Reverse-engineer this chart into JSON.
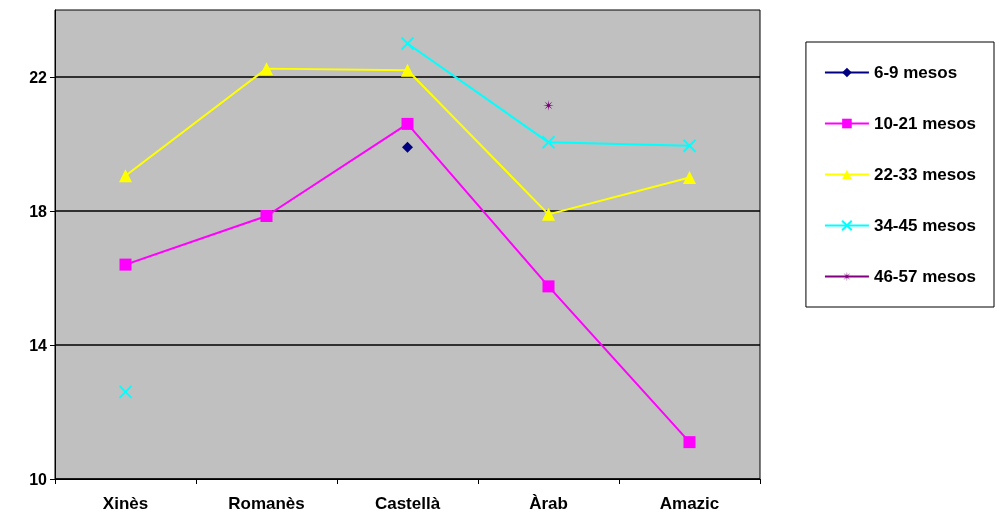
{
  "chart_data": {
    "type": "line",
    "categories": [
      "Xinès",
      "Romanès",
      "Castellà",
      "Àrab",
      "Amazic"
    ],
    "series": [
      {
        "name": "6-9 mesos",
        "color": "#000080",
        "marker": "diamond",
        "values": [
          null,
          null,
          19.9,
          null,
          null
        ]
      },
      {
        "name": "10-21 mesos",
        "color": "#ff00ff",
        "marker": "square",
        "values": [
          16.4,
          17.85,
          20.6,
          15.75,
          11.1
        ]
      },
      {
        "name": "22-33 mesos",
        "color": "#ffff00",
        "marker": "triangle",
        "values": [
          19.05,
          22.25,
          22.2,
          17.9,
          19.0
        ]
      },
      {
        "name": "34-45 mesos",
        "color": "#00ffff",
        "marker": "cross",
        "values": [
          12.6,
          null,
          23.0,
          20.05,
          19.95
        ]
      },
      {
        "name": "46-57 mesos",
        "color": "#800080",
        "marker": "star",
        "values": [
          null,
          null,
          null,
          21.15,
          null
        ]
      }
    ],
    "ylim": [
      10,
      24
    ],
    "yticks": [
      10,
      14,
      18,
      22
    ],
    "grid": "y",
    "legend": "right"
  }
}
